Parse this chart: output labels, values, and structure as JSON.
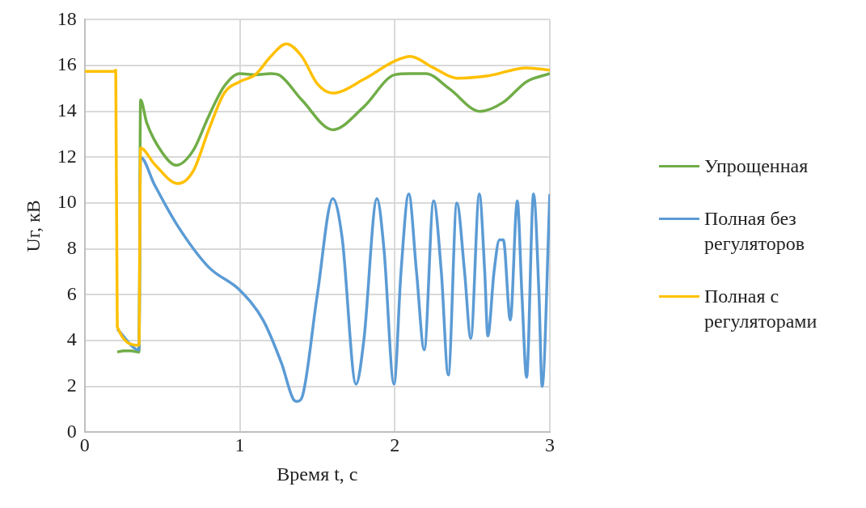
{
  "chart_data": {
    "type": "line",
    "xlabel": "Время t, с",
    "ylabel": "Uг, кВ",
    "xlim": [
      0,
      3
    ],
    "xticks": [
      0,
      1,
      2,
      3
    ],
    "ylim": [
      0,
      18
    ],
    "yticks": [
      0,
      2,
      4,
      6,
      8,
      10,
      12,
      14,
      16,
      18
    ],
    "grid": true,
    "legend": "right",
    "marker": "none",
    "line_style": "solid",
    "series": [
      {
        "name": "Упрощенная",
        "color": "#70ad47",
        "x": [
          0.21,
          0.25,
          0.3,
          0.35,
          0.36,
          0.4,
          0.5,
          0.59,
          0.7,
          0.8,
          0.9,
          1.0,
          1.1,
          1.2,
          1.25,
          1.4,
          1.6,
          1.8,
          2.0,
          2.1,
          2.2,
          2.35,
          2.55,
          2.7,
          2.85,
          3.0
        ],
        "values": [
          3.5,
          3.55,
          3.55,
          3.5,
          14.5,
          13.5,
          12.2,
          11.65,
          12.3,
          13.8,
          15.1,
          15.65,
          15.6,
          15.65,
          15.6,
          14.5,
          13.2,
          14.2,
          15.6,
          15.65,
          15.65,
          15.0,
          14.0,
          14.4,
          15.3,
          15.65
        ]
      },
      {
        "name": "Полная без регуляторов",
        "color": "#5b9bd5",
        "x": [
          0.21,
          0.35,
          0.36,
          0.45,
          0.6,
          0.8,
          1.0,
          1.15,
          1.27,
          1.35,
          1.37,
          1.4,
          1.5,
          1.6,
          1.66,
          1.75,
          1.8,
          1.885,
          1.93,
          1.995,
          2.04,
          2.09,
          2.14,
          2.19,
          2.25,
          2.3,
          2.345,
          2.4,
          2.45,
          2.49,
          2.545,
          2.58,
          2.6,
          2.64,
          2.675,
          2.7,
          2.745,
          2.79,
          2.82,
          2.85,
          2.895,
          2.93,
          2.95,
          3.0
        ],
        "values": [
          4.5,
          3.6,
          12.0,
          10.8,
          9.0,
          7.2,
          6.2,
          4.9,
          3.0,
          1.4,
          1.35,
          1.5,
          6,
          10.2,
          8.5,
          2.1,
          4,
          10.2,
          8,
          2.1,
          7,
          10.4,
          7,
          3.6,
          10.1,
          7,
          2.5,
          10.0,
          7,
          4.1,
          10.4,
          7,
          4.2,
          7,
          8.4,
          8.4,
          4.9,
          10.1,
          6,
          2.4,
          10.4,
          6,
          2.0,
          10.4
        ]
      },
      {
        "name": "Полная с регуляторами",
        "color": "#ffc000",
        "x": [
          0,
          0.19,
          0.2,
          0.21,
          0.35,
          0.36,
          0.45,
          0.6,
          0.7,
          0.8,
          0.9,
          1.0,
          1.1,
          1.2,
          1.3,
          1.4,
          1.5,
          1.6,
          1.8,
          2.0,
          2.1,
          2.25,
          2.4,
          2.6,
          2.85,
          3.0
        ],
        "values": [
          15.75,
          15.75,
          15.8,
          4.6,
          3.8,
          12.4,
          11.7,
          10.85,
          11.4,
          13.2,
          14.8,
          15.3,
          15.6,
          16.4,
          16.95,
          16.4,
          15.2,
          14.8,
          15.4,
          16.2,
          16.4,
          15.9,
          15.45,
          15.55,
          15.9,
          15.8
        ]
      }
    ]
  }
}
